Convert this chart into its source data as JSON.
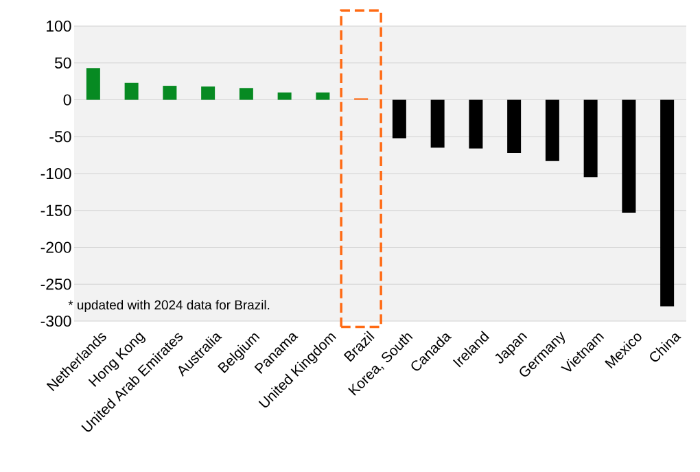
{
  "chart_data": {
    "type": "bar",
    "categories": [
      "Netherlands",
      "Hong Kong",
      "United Arab Emirates",
      "Australia",
      "Belgium",
      "Panama",
      "United Kingdom",
      "Brazil",
      "Korea, South",
      "Canada",
      "Ireland",
      "Japan",
      "Germany",
      "Vietnam",
      "Mexico",
      "China"
    ],
    "values": [
      43,
      23,
      19,
      18,
      16,
      10,
      10,
      2,
      -52,
      -65,
      -66,
      -72,
      -83,
      -105,
      -153,
      -280
    ],
    "colors": [
      "#078a22",
      "#078a22",
      "#078a22",
      "#078a22",
      "#078a22",
      "#078a22",
      "#078a22",
      "#ff6a13",
      "#000000",
      "#000000",
      "#000000",
      "#000000",
      "#000000",
      "#000000",
      "#000000",
      "#000000"
    ],
    "ylim": [
      -300,
      100
    ],
    "yticks": [
      -300,
      -250,
      -200,
      -150,
      -100,
      -50,
      0,
      50,
      100
    ],
    "grid": "y",
    "annotations": [
      "* updated with 2024 data for Brazil."
    ]
  }
}
